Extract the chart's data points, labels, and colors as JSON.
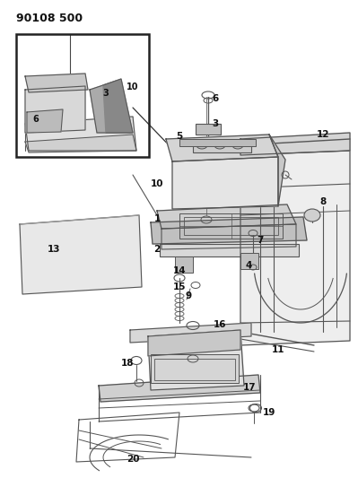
{
  "title": "90108 500",
  "bg_color": "#ffffff",
  "line_color": "#555555",
  "label_color": "#111111",
  "title_fontsize": 9,
  "label_fontsize": 7,
  "figsize": [
    3.99,
    5.33
  ],
  "dpi": 100
}
